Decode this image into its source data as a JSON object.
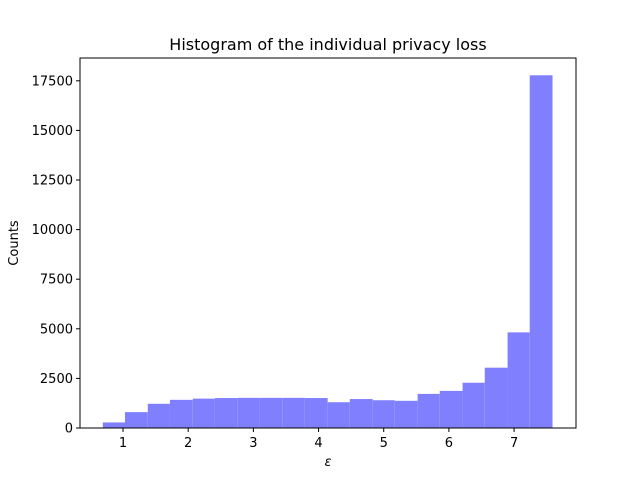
{
  "chart_data": {
    "type": "bar",
    "title": "Histogram of the individual privacy loss",
    "xlabel": "ε",
    "ylabel": "Counts",
    "xlim": [
      0.34,
      7.95
    ],
    "ylim": [
      0,
      18650
    ],
    "xticks": [
      1,
      2,
      3,
      4,
      5,
      6,
      7
    ],
    "yticks": [
      0,
      2500,
      5000,
      7500,
      10000,
      12500,
      15000,
      17500
    ],
    "bar_color": "#8080ff",
    "grid": false,
    "bins": [
      {
        "x0": 0.69,
        "x1": 1.03,
        "count": 280
      },
      {
        "x0": 1.03,
        "x1": 1.38,
        "count": 800
      },
      {
        "x0": 1.38,
        "x1": 1.72,
        "count": 1220
      },
      {
        "x0": 1.72,
        "x1": 2.07,
        "count": 1420
      },
      {
        "x0": 2.07,
        "x1": 2.41,
        "count": 1480
      },
      {
        "x0": 2.41,
        "x1": 2.76,
        "count": 1510
      },
      {
        "x0": 2.76,
        "x1": 3.1,
        "count": 1520
      },
      {
        "x0": 3.1,
        "x1": 3.45,
        "count": 1520
      },
      {
        "x0": 3.45,
        "x1": 3.79,
        "count": 1520
      },
      {
        "x0": 3.79,
        "x1": 4.14,
        "count": 1510
      },
      {
        "x0": 4.14,
        "x1": 4.48,
        "count": 1300
      },
      {
        "x0": 4.48,
        "x1": 4.83,
        "count": 1460
      },
      {
        "x0": 4.83,
        "x1": 5.17,
        "count": 1400
      },
      {
        "x0": 5.17,
        "x1": 5.52,
        "count": 1370
      },
      {
        "x0": 5.52,
        "x1": 5.86,
        "count": 1720
      },
      {
        "x0": 5.86,
        "x1": 6.21,
        "count": 1870
      },
      {
        "x0": 6.21,
        "x1": 6.55,
        "count": 2280
      },
      {
        "x0": 6.55,
        "x1": 6.9,
        "count": 3040
      },
      {
        "x0": 6.9,
        "x1": 7.24,
        "count": 4820
      },
      {
        "x0": 7.24,
        "x1": 7.59,
        "count": 17780
      }
    ]
  }
}
